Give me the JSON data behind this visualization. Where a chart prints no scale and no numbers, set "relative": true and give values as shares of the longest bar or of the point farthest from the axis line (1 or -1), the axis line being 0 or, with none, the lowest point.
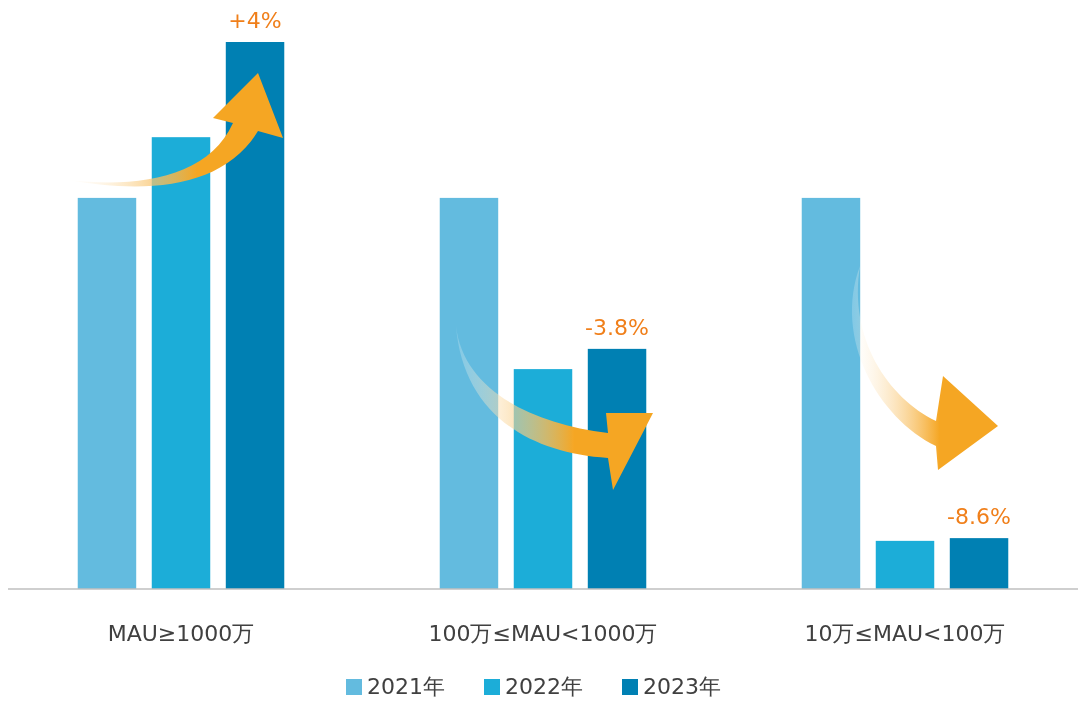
{
  "chart_data": {
    "type": "bar",
    "relative": true,
    "categories": [
      "MAU≥1000万",
      "100万≤MAU<1000万",
      "10万≤MAU<100万"
    ],
    "series": [
      {
        "name": "2021年",
        "color": "#63bbdf",
        "values": [
          0.715,
          0.715,
          0.715
        ]
      },
      {
        "name": "2022年",
        "color": "#1cadd8",
        "values": [
          0.826,
          0.402,
          0.088
        ]
      },
      {
        "name": "2023年",
        "color": "#0080b3",
        "values": [
          1,
          0.439,
          0.093
        ]
      }
    ],
    "annotations": [
      "+4%",
      "-3.8%",
      "-8.6%"
    ],
    "legend": "bottom",
    "grid": false
  }
}
